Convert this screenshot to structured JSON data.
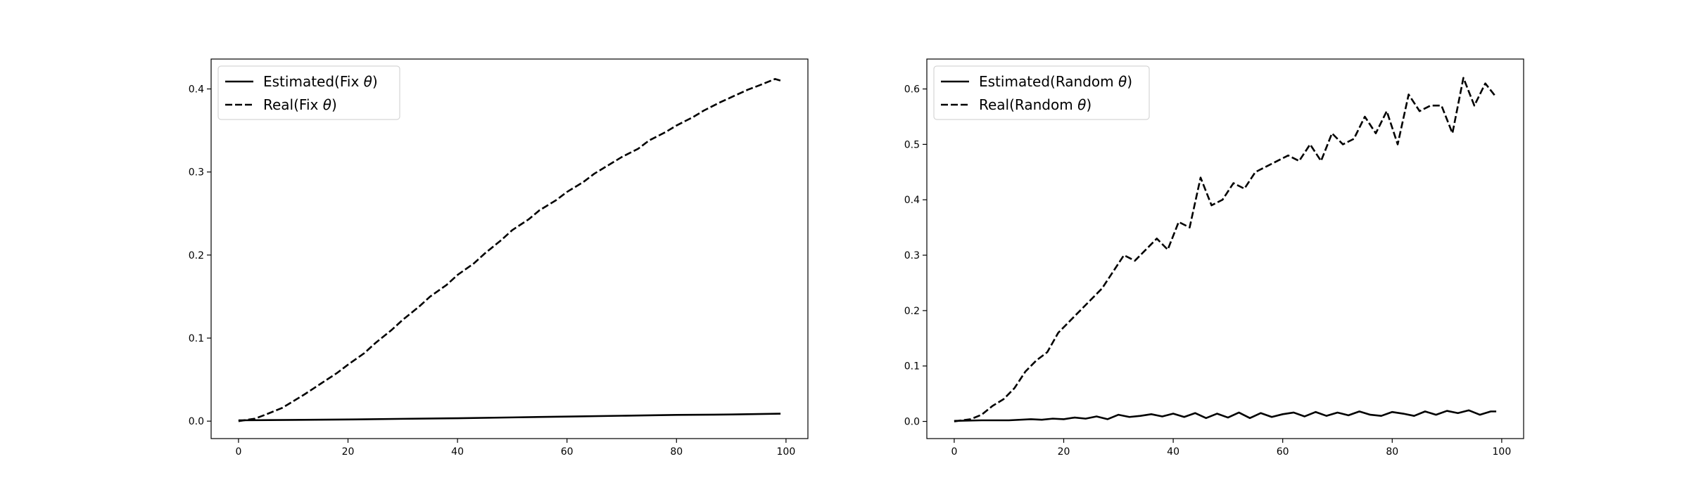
{
  "chart_data": [
    {
      "type": "line",
      "title": "",
      "xlabel": "",
      "ylabel": "",
      "xlim": [
        -5,
        104
      ],
      "ylim": [
        -0.021,
        0.436
      ],
      "xticks": [
        0,
        20,
        40,
        60,
        80,
        100
      ],
      "yticks": [
        0.0,
        0.1,
        0.2,
        0.3,
        0.4
      ],
      "ytick_format": 1,
      "legend": "top-left",
      "grid": false,
      "series": [
        {
          "name": "Estimated(Fix θ)",
          "style": "solid",
          "color": "#000000",
          "x": [
            0,
            10,
            20,
            30,
            40,
            50,
            60,
            70,
            80,
            90,
            99
          ],
          "y": [
            0.001,
            0.0015,
            0.002,
            0.0028,
            0.0035,
            0.0045,
            0.0055,
            0.0065,
            0.0075,
            0.008,
            0.009
          ]
        },
        {
          "name": "Real(Fix θ)",
          "style": "dashed",
          "color": "#000000",
          "x": [
            0,
            3,
            5,
            8,
            10,
            12,
            15,
            18,
            20,
            23,
            25,
            28,
            30,
            33,
            35,
            38,
            40,
            43,
            45,
            48,
            50,
            53,
            55,
            58,
            60,
            63,
            65,
            68,
            70,
            73,
            75,
            78,
            80,
            83,
            85,
            88,
            90,
            93,
            95,
            98,
            99
          ],
          "y": [
            0.0,
            0.003,
            0.008,
            0.016,
            0.024,
            0.032,
            0.045,
            0.058,
            0.068,
            0.082,
            0.094,
            0.11,
            0.122,
            0.138,
            0.15,
            0.164,
            0.176,
            0.19,
            0.202,
            0.218,
            0.23,
            0.243,
            0.254,
            0.266,
            0.276,
            0.288,
            0.298,
            0.31,
            0.318,
            0.328,
            0.338,
            0.348,
            0.356,
            0.366,
            0.374,
            0.384,
            0.39,
            0.399,
            0.404,
            0.412,
            0.41
          ]
        }
      ]
    },
    {
      "type": "line",
      "title": "",
      "xlabel": "",
      "ylabel": "",
      "xlim": [
        -5,
        104
      ],
      "ylim": [
        -0.031,
        0.654
      ],
      "xticks": [
        0,
        20,
        40,
        60,
        80,
        100
      ],
      "yticks": [
        0.0,
        0.1,
        0.2,
        0.3,
        0.4,
        0.5,
        0.6
      ],
      "ytick_format": 1,
      "legend": "top-left",
      "grid": false,
      "series": [
        {
          "name": "Estimated(Random θ)",
          "style": "solid",
          "color": "#000000",
          "x": [
            0,
            5,
            10,
            14,
            16,
            18,
            20,
            22,
            24,
            26,
            28,
            30,
            32,
            34,
            36,
            38,
            40,
            42,
            44,
            46,
            48,
            50,
            52,
            54,
            56,
            58,
            60,
            62,
            64,
            66,
            68,
            70,
            72,
            74,
            76,
            78,
            80,
            82,
            84,
            86,
            88,
            90,
            92,
            94,
            96,
            98,
            99
          ],
          "y": [
            0.001,
            0.002,
            0.002,
            0.004,
            0.003,
            0.005,
            0.004,
            0.007,
            0.005,
            0.009,
            0.004,
            0.012,
            0.008,
            0.01,
            0.013,
            0.009,
            0.014,
            0.008,
            0.015,
            0.006,
            0.014,
            0.007,
            0.016,
            0.006,
            0.015,
            0.008,
            0.013,
            0.016,
            0.009,
            0.017,
            0.01,
            0.016,
            0.011,
            0.018,
            0.012,
            0.01,
            0.017,
            0.014,
            0.01,
            0.018,
            0.012,
            0.019,
            0.015,
            0.02,
            0.012,
            0.018,
            0.018
          ]
        },
        {
          "name": "Real(Random θ)",
          "style": "dashed",
          "color": "#000000",
          "x": [
            0,
            3,
            5,
            7,
            9,
            11,
            13,
            15,
            17,
            19,
            21,
            23,
            25,
            27,
            29,
            31,
            33,
            35,
            37,
            39,
            41,
            43,
            45,
            47,
            49,
            51,
            53,
            55,
            57,
            59,
            61,
            63,
            65,
            67,
            69,
            71,
            73,
            75,
            77,
            79,
            81,
            83,
            85,
            87,
            89,
            91,
            93,
            95,
            97,
            99
          ],
          "y": [
            0.0,
            0.004,
            0.012,
            0.028,
            0.04,
            0.06,
            0.09,
            0.11,
            0.125,
            0.16,
            0.18,
            0.2,
            0.22,
            0.24,
            0.27,
            0.3,
            0.29,
            0.31,
            0.33,
            0.31,
            0.36,
            0.35,
            0.44,
            0.39,
            0.4,
            0.43,
            0.42,
            0.45,
            0.46,
            0.47,
            0.48,
            0.47,
            0.5,
            0.47,
            0.52,
            0.5,
            0.51,
            0.55,
            0.52,
            0.56,
            0.5,
            0.59,
            0.56,
            0.57,
            0.57,
            0.52,
            0.62,
            0.57,
            0.61,
            0.585
          ]
        }
      ]
    }
  ]
}
